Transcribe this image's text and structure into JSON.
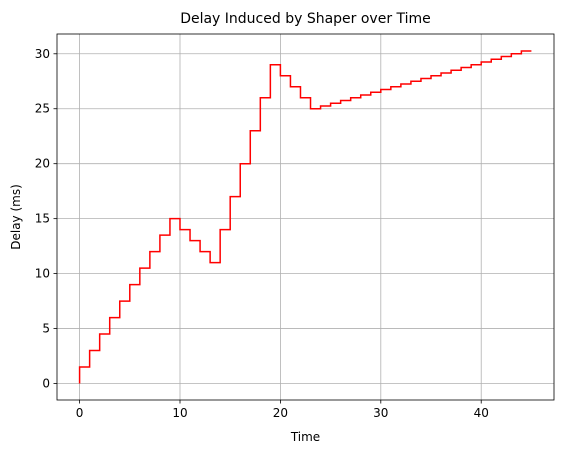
{
  "chart_data": {
    "type": "line",
    "step": "post",
    "title": "Delay Induced by Shaper over Time",
    "xlabel": "Time",
    "ylabel": "Delay (ms)",
    "xlim": [
      -2.25,
      47.25
    ],
    "ylim": [
      -1.5,
      31.8
    ],
    "xticks": [
      0,
      10,
      20,
      30,
      40
    ],
    "yticks": [
      0,
      5,
      10,
      15,
      20,
      25,
      30
    ],
    "grid": true,
    "line_color": "#ff0000",
    "series": [
      {
        "x": [
          0,
          0,
          1,
          2,
          3,
          4,
          5,
          6,
          7,
          8,
          9,
          10,
          11,
          12,
          13,
          14,
          15,
          16,
          17,
          18,
          19,
          20,
          21,
          22,
          23,
          24,
          25,
          26,
          27,
          28,
          29,
          30,
          31,
          32,
          33,
          34,
          35,
          36,
          37,
          38,
          39,
          40,
          41,
          42,
          43,
          44,
          45
        ],
        "y": [
          0,
          1.5,
          3,
          4.5,
          6,
          7.5,
          9,
          10.5,
          12,
          13.5,
          15,
          14,
          13,
          12,
          11,
          14,
          17,
          20,
          23,
          26,
          29,
          28,
          27,
          26,
          25,
          25.25,
          25.5,
          25.75,
          26,
          26.25,
          26.5,
          26.75,
          27,
          27.25,
          27.5,
          27.75,
          28,
          28.25,
          28.5,
          28.75,
          29,
          29.25,
          29.5,
          29.75,
          30,
          30.25,
          30.25
        ]
      }
    ]
  }
}
